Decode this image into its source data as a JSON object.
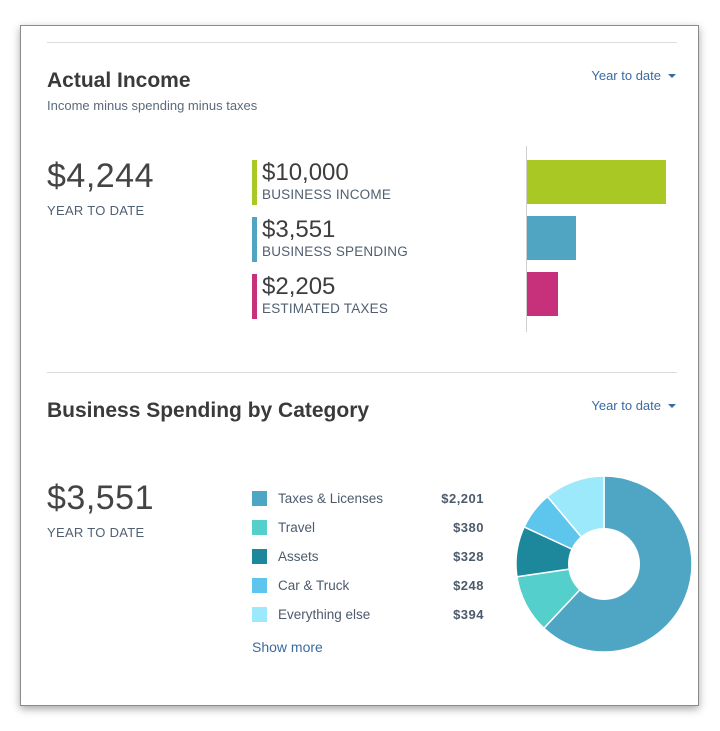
{
  "actual_income": {
    "title": "Actual Income",
    "subtitle": "Income minus spending minus taxes",
    "period": "Year to date",
    "total": "$4,244",
    "total_label": "YEAR TO DATE",
    "metrics": [
      {
        "amount": "$10,000",
        "label": "BUSINESS INCOME",
        "value": 10000,
        "color": "#a9c823"
      },
      {
        "amount": "$3,551",
        "label": "BUSINESS SPENDING",
        "value": 3551,
        "color": "#50a6c2"
      },
      {
        "amount": "$2,205",
        "label": "ESTIMATED TAXES",
        "value": 2205,
        "color": "#c7307a"
      }
    ]
  },
  "spending": {
    "title": "Business Spending by Category",
    "period": "Year to date",
    "total": "$3,551",
    "total_label": "YEAR TO DATE",
    "show_more": "Show more",
    "categories": [
      {
        "name": "Taxes & Licenses",
        "amount": "$2,201",
        "color": "#4fa6c4"
      },
      {
        "name": "Travel",
        "amount": "$380",
        "color": "#55cfcc"
      },
      {
        "name": "Assets",
        "amount": "$328",
        "color": "#1d879c"
      },
      {
        "name": "Car & Truck",
        "amount": "$248",
        "color": "#5ec5ec"
      },
      {
        "name": "Everything else",
        "amount": "$394",
        "color": "#9be9fb"
      }
    ]
  },
  "chart_data": [
    {
      "type": "bar",
      "categories": [
        "BUSINESS INCOME",
        "BUSINESS SPENDING",
        "ESTIMATED TAXES"
      ],
      "values": [
        10000,
        3551,
        2205
      ],
      "title": "",
      "xlabel": "",
      "ylabel": ""
    },
    {
      "type": "pie",
      "categories": [
        "Taxes & Licenses",
        "Travel",
        "Assets",
        "Car & Truck",
        "Everything else"
      ],
      "values": [
        2201,
        380,
        328,
        248,
        394
      ],
      "title": ""
    }
  ]
}
